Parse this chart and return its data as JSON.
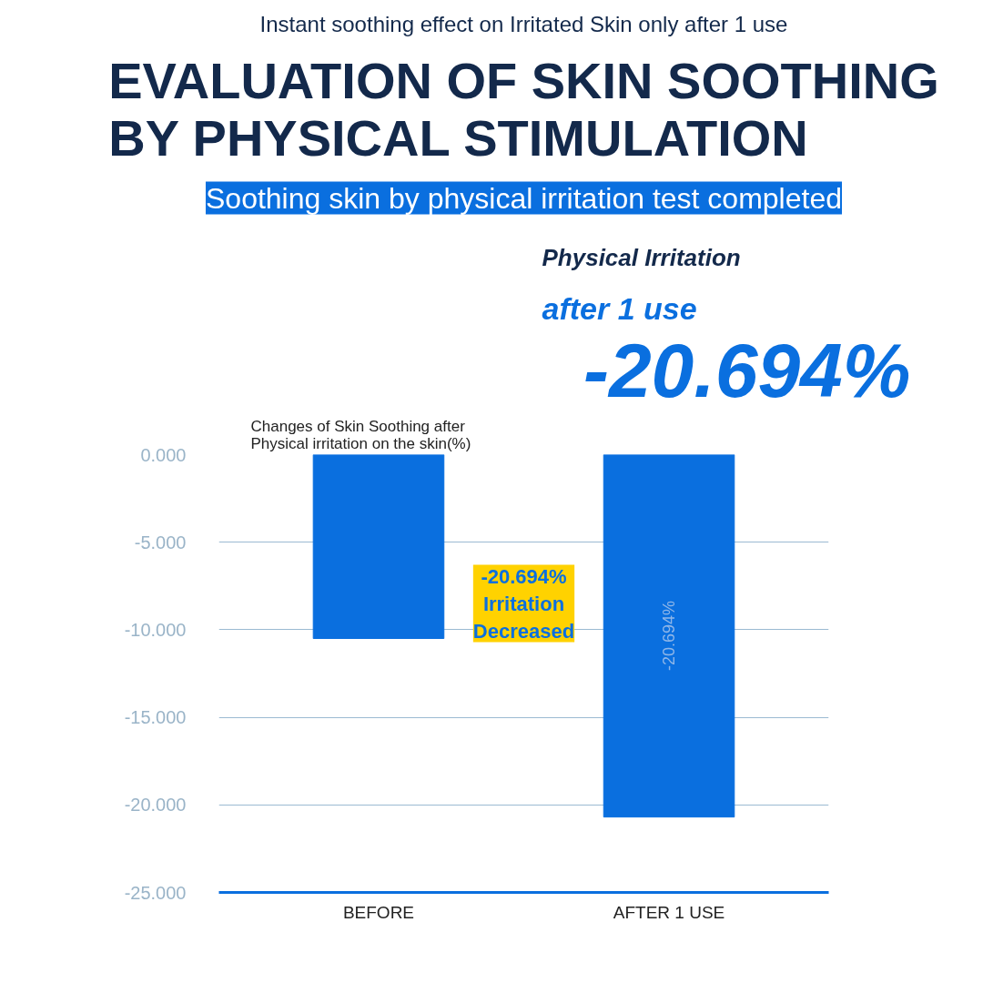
{
  "chart_data": {
    "type": "bar",
    "subtitle": "Instant soothing effect on Irritated Skin only after 1 use",
    "title": "EVALUATION OF SKIN SOOTHING\nBY PHYSICAL STIMULATION",
    "ylabel": "Changes of Skin Soothing after\nPhysical irritation on the skin(%)",
    "annotations": [
      "Soothing skin by physical irritation test completed",
      "Physical Irritation",
      "after 1 use",
      "-20.694%",
      "-20.694%\nIrritation\nDecreased"
    ],
    "categories": [
      "BEFORE",
      "AFTER 1 USE"
    ],
    "values": [
      -10.5,
      -20.694
    ],
    "value_labels": [
      null,
      "-20.694%"
    ],
    "color": "#0a6fdf",
    "ylim": [
      -25,
      0
    ],
    "yticks": [
      {
        "value": -25,
        "label": "-25.000"
      },
      {
        "value": -20,
        "label": "-20.000"
      },
      {
        "value": -15,
        "label": "-15.000"
      },
      {
        "value": -10,
        "label": "-10.000"
      },
      {
        "value": -5,
        "label": "-5.000"
      },
      {
        "value": 0,
        "label": "0.000"
      }
    ],
    "grid": "y"
  }
}
